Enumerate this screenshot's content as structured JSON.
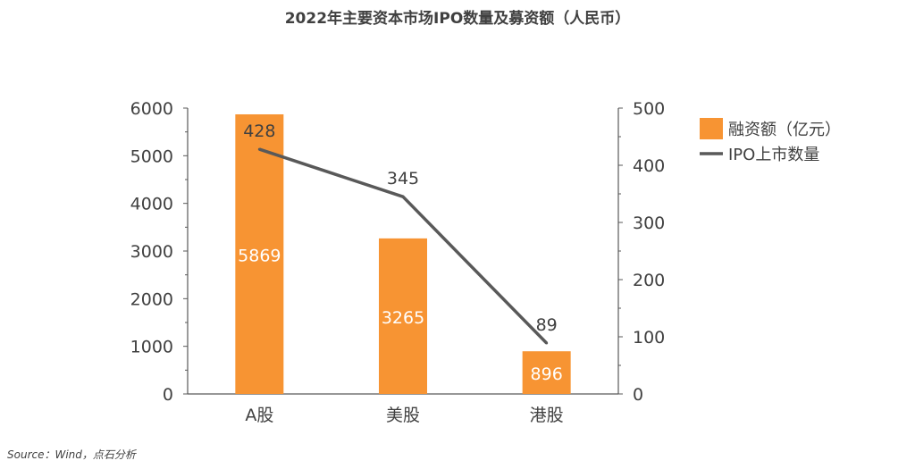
{
  "title": "2022年主要资本市场IPO数量及募资额（人民币）",
  "source": "Source：Wind，点石分析",
  "chart_data": {
    "type": "bar",
    "categories": [
      "A股",
      "美股",
      "港股"
    ],
    "series": [
      {
        "name": "融资额（亿元）",
        "type": "bar",
        "axis": "left",
        "color": "#F79433",
        "values": [
          5869,
          3265,
          896
        ]
      },
      {
        "name": "IPO上市数量",
        "type": "line",
        "axis": "right",
        "color": "#595959",
        "values": [
          428,
          345,
          89
        ]
      }
    ],
    "ylim_left": [
      0,
      6000
    ],
    "yticks_left": [
      0,
      1000,
      2000,
      3000,
      4000,
      5000,
      6000
    ],
    "ylim_right": [
      0,
      500
    ],
    "yticks_right": [
      0,
      100,
      200,
      300,
      400,
      500
    ],
    "legend_position": "right",
    "grid": false
  }
}
